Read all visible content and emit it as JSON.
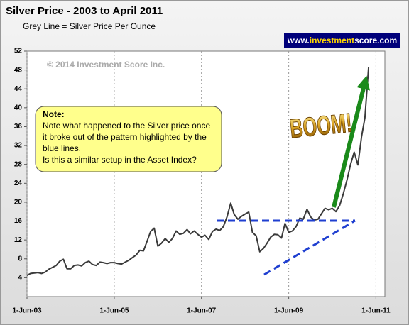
{
  "chart_data": {
    "type": "line",
    "title": "Silver Price - 2003 to April 2011",
    "subtitle": "Grey Line =  Silver Price Per Ounce",
    "watermark": "© 2014 Investment Score Inc.",
    "banner": [
      "www.",
      "investment",
      "score",
      ".com"
    ],
    "note": {
      "heading": "Note:",
      "lines": [
        "Note what happened to the Silver price once",
        "it broke out of the pattern highlighted by the",
        "blue lines.",
        "Is this a similar setup in the Asset Index?"
      ]
    },
    "annotation": "BOOM!",
    "grid": true,
    "xlim": [
      "2003-06-01",
      "2011-08-15"
    ],
    "xticks": [
      {
        "value": "2003-06-01",
        "label": "1-Jun-03"
      },
      {
        "value": "2005-06-01",
        "label": "1-Jun-05"
      },
      {
        "value": "2007-06-01",
        "label": "1-Jun-07"
      },
      {
        "value": "2009-06-01",
        "label": "1-Jun-09"
      },
      {
        "value": "2011-06-01",
        "label": "1-Jun-11"
      }
    ],
    "ylim": [
      0,
      52
    ],
    "yticks": [
      4,
      8,
      12,
      16,
      20,
      24,
      28,
      32,
      36,
      40,
      44,
      48,
      52
    ],
    "x": [
      "2003-06-01",
      "2003-07-01",
      "2003-08-01",
      "2003-09-01",
      "2003-10-01",
      "2003-11-01",
      "2003-12-01",
      "2004-01-01",
      "2004-02-01",
      "2004-03-01",
      "2004-04-01",
      "2004-05-01",
      "2004-06-01",
      "2004-07-01",
      "2004-08-01",
      "2004-09-01",
      "2004-10-01",
      "2004-11-01",
      "2004-12-01",
      "2005-01-01",
      "2005-02-01",
      "2005-03-01",
      "2005-04-01",
      "2005-05-01",
      "2005-06-01",
      "2005-07-01",
      "2005-08-01",
      "2005-09-01",
      "2005-10-01",
      "2005-11-01",
      "2005-12-01",
      "2006-01-01",
      "2006-02-01",
      "2006-03-01",
      "2006-04-01",
      "2006-05-01",
      "2006-06-01",
      "2006-07-01",
      "2006-08-01",
      "2006-09-01",
      "2006-10-01",
      "2006-11-01",
      "2006-12-01",
      "2007-01-01",
      "2007-02-01",
      "2007-03-01",
      "2007-04-01",
      "2007-05-01",
      "2007-06-01",
      "2007-07-01",
      "2007-08-01",
      "2007-09-01",
      "2007-10-01",
      "2007-11-01",
      "2007-12-01",
      "2008-01-01",
      "2008-02-01",
      "2008-03-01",
      "2008-04-01",
      "2008-05-01",
      "2008-06-01",
      "2008-07-01",
      "2008-08-01",
      "2008-09-01",
      "2008-10-01",
      "2008-11-01",
      "2008-12-01",
      "2009-01-01",
      "2009-02-01",
      "2009-03-01",
      "2009-04-01",
      "2009-05-01",
      "2009-06-01",
      "2009-07-01",
      "2009-08-01",
      "2009-09-01",
      "2009-10-01",
      "2009-11-01",
      "2009-12-01",
      "2010-01-01",
      "2010-02-01",
      "2010-03-01",
      "2010-04-01",
      "2010-05-01",
      "2010-06-01",
      "2010-07-01",
      "2010-08-01",
      "2010-09-01",
      "2010-10-01",
      "2010-11-01",
      "2010-12-01",
      "2011-01-01",
      "2011-02-01",
      "2011-03-01",
      "2011-04-01"
    ],
    "series": [
      {
        "name": "Silver Price Per Ounce",
        "color": "#3a3a3a",
        "values": [
          4.5,
          4.9,
          5.0,
          5.1,
          4.9,
          5.2,
          5.8,
          6.2,
          6.6,
          7.5,
          7.9,
          5.9,
          5.9,
          6.6,
          6.7,
          6.5,
          7.2,
          7.5,
          6.8,
          6.6,
          7.3,
          7.2,
          7.0,
          7.2,
          7.2,
          7.0,
          6.9,
          7.3,
          7.7,
          8.3,
          8.8,
          9.8,
          9.7,
          11.6,
          13.8,
          14.5,
          10.7,
          11.3,
          12.3,
          11.5,
          12.3,
          13.9,
          13.2,
          13.4,
          14.2,
          13.3,
          13.9,
          13.2,
          12.6,
          13.0,
          12.1,
          13.8,
          14.3,
          14.0,
          14.8,
          16.9,
          19.8,
          17.4,
          16.4,
          17.0,
          17.5,
          17.9,
          13.6,
          12.9,
          9.5,
          10.2,
          11.3,
          12.6,
          13.2,
          13.1,
          12.4,
          15.5,
          13.6,
          13.9,
          14.8,
          16.6,
          16.4,
          18.5,
          16.9,
          16.2,
          16.4,
          17.5,
          18.7,
          18.4,
          18.7,
          18.0,
          19.3,
          21.8,
          24.6,
          28.0,
          30.6,
          27.9,
          33.9,
          37.9,
          48.6
        ]
      }
    ]
  }
}
